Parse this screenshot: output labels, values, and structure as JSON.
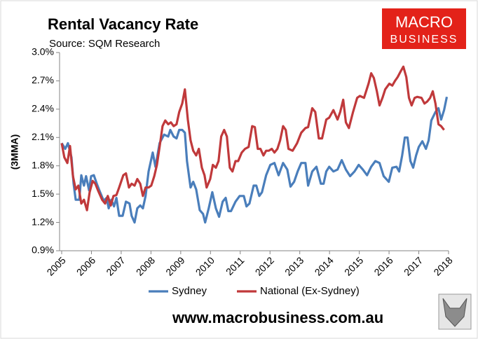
{
  "chart_data": {
    "type": "line",
    "title": "Rental Vacancy Rate",
    "subtitle": "Source: SQM Research",
    "y_label": "(3MMA)",
    "logo": [
      "MACRO",
      "BUSINESS"
    ],
    "footer": "www.macrobusiness.com.au",
    "xlim": [
      2005,
      2018
    ],
    "xticks": [
      2005,
      2006,
      2007,
      2008,
      2009,
      2010,
      2011,
      2012,
      2013,
      2014,
      2015,
      2016,
      2017,
      2018
    ],
    "ylim": [
      0.9,
      3.0
    ],
    "yticks": [
      {
        "value": 0.9,
        "label": "0.9%"
      },
      {
        "value": 1.2,
        "label": "1.2%"
      },
      {
        "value": 1.5,
        "label": "1.5%"
      },
      {
        "value": 1.8,
        "label": "1.8%"
      },
      {
        "value": 2.1,
        "label": "2.1%"
      },
      {
        "value": 2.4,
        "label": "2.4%"
      },
      {
        "value": 2.7,
        "label": "2.7%"
      },
      {
        "value": 3.0,
        "label": "3.0%"
      }
    ],
    "series": [
      {
        "name": "Sydney",
        "color": "#4a7ebb",
        "x": [
          2005.0,
          2005.12,
          2005.21,
          2005.33,
          2005.4,
          2005.47,
          2005.59,
          2005.66,
          2005.75,
          2005.82,
          2005.92,
          2005.99,
          2006.08,
          2006.18,
          2006.29,
          2006.41,
          2006.51,
          2006.58,
          2006.67,
          2006.76,
          2006.84,
          2006.93,
          2007.05,
          2007.16,
          2007.28,
          2007.35,
          2007.45,
          2007.54,
          2007.64,
          2007.73,
          2007.82,
          2007.92,
          2008.06,
          2008.15,
          2008.29,
          2008.44,
          2008.58,
          2008.65,
          2008.76,
          2008.86,
          2008.95,
          2009.05,
          2009.14,
          2009.21,
          2009.33,
          2009.42,
          2009.52,
          2009.64,
          2009.75,
          2009.82,
          2009.94,
          2010.06,
          2010.18,
          2010.29,
          2010.41,
          2010.51,
          2010.6,
          2010.69,
          2010.84,
          2010.98,
          2011.12,
          2011.21,
          2011.31,
          2011.45,
          2011.54,
          2011.64,
          2011.73,
          2011.87,
          2012.01,
          2012.15,
          2012.29,
          2012.44,
          2012.58,
          2012.69,
          2012.81,
          2012.93,
          2013.05,
          2013.19,
          2013.28,
          2013.42,
          2013.56,
          2013.71,
          2013.8,
          2013.89,
          2013.99,
          2014.13,
          2014.27,
          2014.41,
          2014.55,
          2014.69,
          2014.84,
          2014.98,
          2015.12,
          2015.26,
          2015.4,
          2015.54,
          2015.68,
          2015.82,
          2015.99,
          2016.11,
          2016.25,
          2016.34,
          2016.44,
          2016.53,
          2016.62,
          2016.72,
          2016.81,
          2016.91,
          2017.0,
          2017.12,
          2017.24,
          2017.33,
          2017.42,
          2017.56,
          2017.66,
          2017.75,
          2017.85,
          2017.94
        ],
        "values": [
          2.04,
          1.98,
          2.04,
          1.89,
          1.61,
          1.44,
          1.44,
          1.7,
          1.59,
          1.69,
          1.54,
          1.69,
          1.7,
          1.61,
          1.52,
          1.43,
          1.46,
          1.35,
          1.44,
          1.37,
          1.46,
          1.27,
          1.27,
          1.42,
          1.4,
          1.27,
          1.2,
          1.35,
          1.38,
          1.35,
          1.48,
          1.74,
          1.94,
          1.79,
          2.04,
          2.13,
          2.11,
          2.18,
          2.11,
          2.09,
          2.18,
          2.18,
          2.15,
          1.85,
          1.57,
          1.63,
          1.55,
          1.33,
          1.29,
          1.2,
          1.35,
          1.52,
          1.35,
          1.26,
          1.42,
          1.46,
          1.32,
          1.32,
          1.42,
          1.48,
          1.48,
          1.37,
          1.4,
          1.59,
          1.59,
          1.48,
          1.52,
          1.7,
          1.81,
          1.83,
          1.7,
          1.83,
          1.76,
          1.58,
          1.63,
          1.74,
          1.83,
          1.83,
          1.59,
          1.74,
          1.79,
          1.61,
          1.61,
          1.74,
          1.79,
          1.74,
          1.76,
          1.86,
          1.76,
          1.69,
          1.74,
          1.81,
          1.76,
          1.7,
          1.79,
          1.85,
          1.83,
          1.69,
          1.63,
          1.78,
          1.79,
          1.74,
          1.91,
          2.1,
          2.1,
          1.85,
          1.78,
          1.91,
          2.0,
          2.06,
          1.98,
          2.07,
          2.28,
          2.37,
          2.41,
          2.29,
          2.39,
          2.53
        ]
      },
      {
        "name": "National (Ex-Sydney)",
        "color": "#c0393b",
        "x": [
          2005.0,
          2005.09,
          2005.19,
          2005.28,
          2005.38,
          2005.47,
          2005.56,
          2005.66,
          2005.75,
          2005.85,
          2005.94,
          2006.04,
          2006.13,
          2006.22,
          2006.36,
          2006.46,
          2006.55,
          2006.65,
          2006.74,
          2006.84,
          2006.93,
          2007.07,
          2007.16,
          2007.26,
          2007.35,
          2007.45,
          2007.54,
          2007.64,
          2007.73,
          2007.82,
          2007.92,
          2008.01,
          2008.11,
          2008.2,
          2008.29,
          2008.39,
          2008.48,
          2008.58,
          2008.67,
          2008.76,
          2008.86,
          2008.95,
          2009.05,
          2009.14,
          2009.24,
          2009.33,
          2009.42,
          2009.52,
          2009.61,
          2009.71,
          2009.8,
          2009.87,
          2009.99,
          2010.08,
          2010.18,
          2010.27,
          2010.36,
          2010.46,
          2010.55,
          2010.65,
          2010.74,
          2010.84,
          2010.93,
          2011.05,
          2011.16,
          2011.28,
          2011.4,
          2011.49,
          2011.59,
          2011.68,
          2011.78,
          2011.87,
          2011.96,
          2012.06,
          2012.15,
          2012.25,
          2012.34,
          2012.44,
          2012.53,
          2012.62,
          2012.76,
          2012.91,
          2013.05,
          2013.19,
          2013.28,
          2013.42,
          2013.52,
          2013.64,
          2013.75,
          2013.89,
          2013.99,
          2014.13,
          2014.27,
          2014.36,
          2014.46,
          2014.55,
          2014.65,
          2014.79,
          2014.93,
          2015.02,
          2015.16,
          2015.31,
          2015.4,
          2015.49,
          2015.59,
          2015.68,
          2015.78,
          2015.87,
          2016.01,
          2016.11,
          2016.2,
          2016.29,
          2016.39,
          2016.48,
          2016.58,
          2016.67,
          2016.76,
          2016.86,
          2016.95,
          2017.09,
          2017.19,
          2017.28,
          2017.38,
          2017.47,
          2017.56,
          2017.66,
          2017.75,
          2017.85
        ],
        "values": [
          2.04,
          1.89,
          1.83,
          2.01,
          1.69,
          1.55,
          1.59,
          1.4,
          1.44,
          1.33,
          1.52,
          1.64,
          1.61,
          1.54,
          1.44,
          1.4,
          1.48,
          1.38,
          1.48,
          1.49,
          1.57,
          1.7,
          1.72,
          1.57,
          1.61,
          1.59,
          1.66,
          1.61,
          1.48,
          1.57,
          1.57,
          1.59,
          1.69,
          1.81,
          2.0,
          2.22,
          2.28,
          2.24,
          2.26,
          2.22,
          2.24,
          2.37,
          2.46,
          2.61,
          2.29,
          2.07,
          1.96,
          1.91,
          1.98,
          1.78,
          1.7,
          1.57,
          1.66,
          1.81,
          1.78,
          1.85,
          2.11,
          2.18,
          2.11,
          1.78,
          1.74,
          1.85,
          1.85,
          1.94,
          1.98,
          2.0,
          2.22,
          2.21,
          1.98,
          1.98,
          1.91,
          1.96,
          1.96,
          1.98,
          1.94,
          1.98,
          2.07,
          2.22,
          2.18,
          1.98,
          1.96,
          2.04,
          2.15,
          2.2,
          2.21,
          2.41,
          2.37,
          2.09,
          2.09,
          2.29,
          2.31,
          2.39,
          2.29,
          2.37,
          2.5,
          2.26,
          2.2,
          2.37,
          2.52,
          2.54,
          2.52,
          2.67,
          2.78,
          2.73,
          2.59,
          2.44,
          2.52,
          2.61,
          2.67,
          2.65,
          2.7,
          2.74,
          2.8,
          2.85,
          2.74,
          2.52,
          2.44,
          2.52,
          2.53,
          2.52,
          2.46,
          2.48,
          2.52,
          2.59,
          2.46,
          2.24,
          2.22,
          2.18
        ]
      }
    ]
  }
}
